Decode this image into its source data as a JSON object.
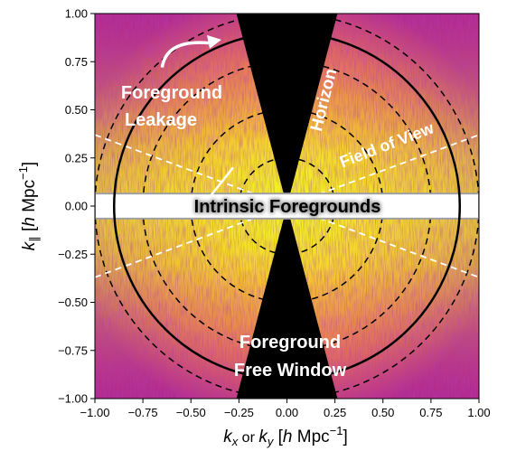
{
  "chart_data": {
    "type": "heatmap",
    "colormap": "plasma",
    "x_range": [
      -1.0,
      1.0
    ],
    "y_range": [
      -1.0,
      1.0
    ],
    "x_ticks": [
      "−1.00",
      "−0.75",
      "−0.50",
      "−0.25",
      "0.00",
      "0.25",
      "0.50",
      "0.75",
      "1.00"
    ],
    "y_ticks": [
      "1.00",
      "0.75",
      "0.50",
      "0.25",
      "0.00",
      "−0.25",
      "−0.50",
      "−0.75",
      "−1.00"
    ],
    "x_tick_values": [
      -1.0,
      -0.75,
      -0.5,
      -0.25,
      0.0,
      0.25,
      0.5,
      0.75,
      1.0
    ],
    "y_tick_values": [
      1.0,
      0.75,
      0.5,
      0.25,
      0.0,
      -0.25,
      -0.5,
      -0.75,
      -1.0
    ],
    "xlabel": {
      "k1": "k",
      "sub1": "x",
      "mid": " or ",
      "k2": "k",
      "sub2": "y",
      "units_open": " [",
      "h": "h",
      "mpc": " Mpc",
      "exp": "−1",
      "close": "]"
    },
    "ylabel": {
      "k": "k",
      "sub": "∥",
      "units_open": " [",
      "h": "h",
      "mpc": " Mpc",
      "exp": "−1",
      "close": "]"
    },
    "dashed_circle_radii": [
      0.25,
      0.5,
      0.75,
      1.0
    ],
    "solid_circle_radius": 0.9,
    "horizon_wedge_slope": 3.8,
    "fov_line_slope": 0.37,
    "foreground_band_halfwidth": 0.065,
    "arrow": {
      "from": [
        -0.65,
        0.72
      ],
      "to": [
        -0.36,
        0.86
      ]
    },
    "leakage_marker": {
      "from": [
        -0.28,
        0.2
      ],
      "to": [
        -0.4,
        0.1
      ],
      "bar": [
        -0.4,
        0.05
      ]
    },
    "annotations": {
      "horizon": "Horizon",
      "field_of_view": "Field of View",
      "fg_leakage_line1": "Foreground",
      "fg_leakage_line2": "Leakage",
      "intrinsic": "Intrinsic Foregrounds",
      "fg_free_line1": "Foreground",
      "fg_free_line2": "Free Window"
    },
    "colors": {
      "cmap_stops": [
        "#0d0887",
        "#6a00a8",
        "#b12a90",
        "#e16462",
        "#fca636",
        "#f0f921"
      ],
      "wedge": "#000000",
      "band_fill": "#ffffff",
      "band_edge": "#a0a0a0"
    },
    "grid": false
  }
}
